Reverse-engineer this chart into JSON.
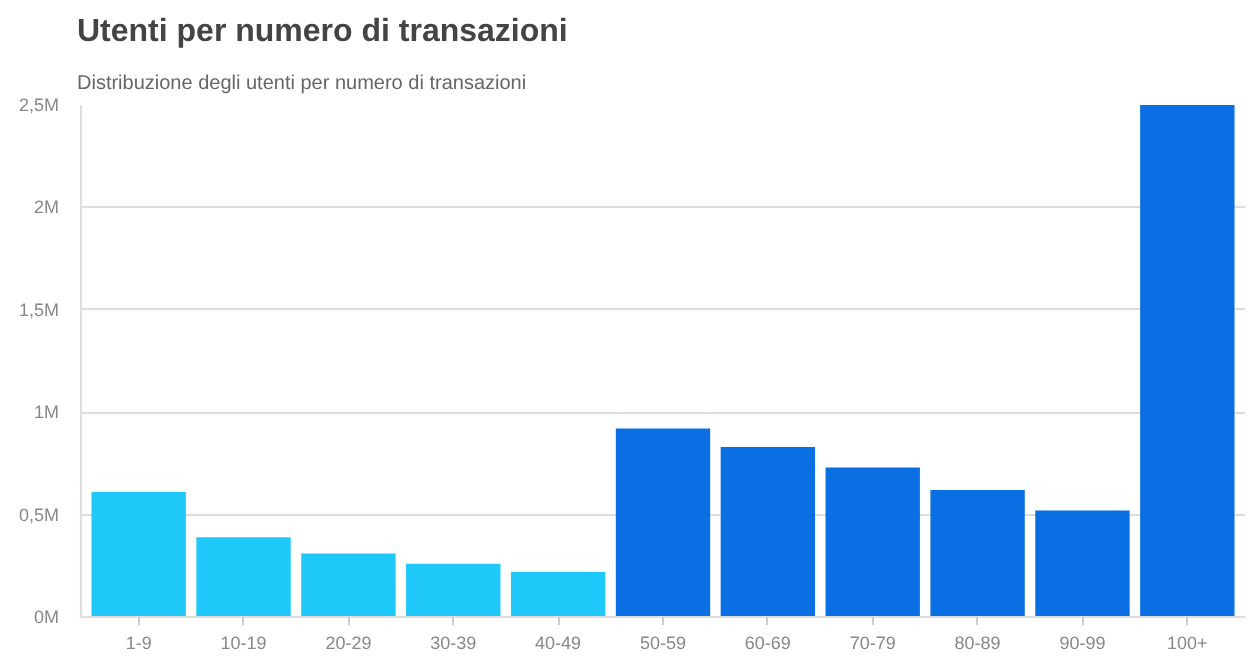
{
  "chart_data": {
    "type": "bar",
    "title": "Utenti per numero di transazioni",
    "subtitle": "Distribuzione degli utenti per numero di transazioni",
    "categories": [
      "1-9",
      "10-19",
      "20-29",
      "30-39",
      "40-49",
      "50-59",
      "60-69",
      "70-79",
      "80-89",
      "90-99",
      "100+"
    ],
    "values": [
      0.61,
      0.39,
      0.31,
      0.26,
      0.22,
      0.92,
      0.83,
      0.73,
      0.62,
      0.52,
      2.5
    ],
    "colors": [
      "#1ec8f8",
      "#1ec8f8",
      "#1ec8f8",
      "#1ec8f8",
      "#1ec8f8",
      "#0a6fe3",
      "#0a6fe3",
      "#0a6fe3",
      "#0a6fe3",
      "#0a6fe3",
      "#0a6fe3"
    ],
    "ylim": [
      0,
      2.5
    ],
    "yticks": [
      {
        "value": 0,
        "label": "0M"
      },
      {
        "value": 0.5,
        "label": "0,5M"
      },
      {
        "value": 1,
        "label": "1M"
      },
      {
        "value": 1.5,
        "label": "1,5M"
      },
      {
        "value": 2,
        "label": "2M"
      },
      {
        "value": 2.5,
        "label": "2,5M"
      }
    ],
    "grid": "y"
  }
}
